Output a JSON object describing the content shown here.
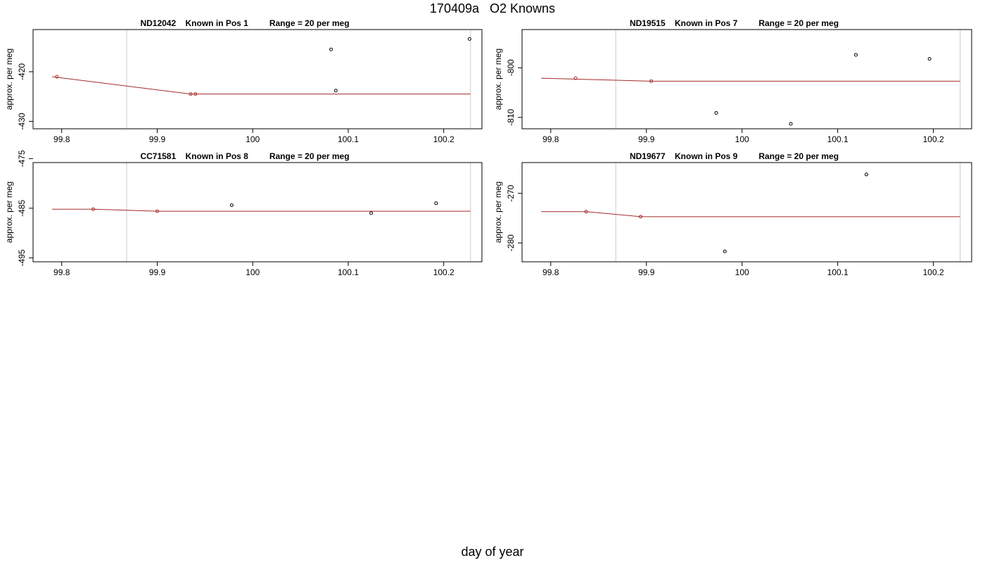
{
  "title": "170409a   O2 Knowns",
  "xlabel": "day of year",
  "colors": {
    "point": "#000000",
    "fit_line": "#a52a2a",
    "fit_point": "#a52a2a",
    "vline": "#d3d3d3",
    "frame": "#000000"
  },
  "chart_data": [
    {
      "type": "scatter",
      "panel_title": "ND12042    Known in Pos 1         Range = 20 per meg",
      "ylabel": "approx. per meg",
      "xlim": [
        99.77,
        100.24
      ],
      "ylim": [
        -431.5,
        -411.5
      ],
      "xticks": [
        99.8,
        99.9,
        100.0,
        100.1,
        100.2
      ],
      "yticks": [
        -420,
        -430
      ],
      "vlines": [
        99.868,
        100.228
      ],
      "line": {
        "x": [
          99.79,
          99.935,
          99.94,
          100.228
        ],
        "y": [
          -421,
          -424.5,
          -424.5,
          -424.5
        ]
      },
      "fit_points": {
        "x": [
          99.795,
          99.935,
          99.94
        ],
        "y": [
          -421,
          -424.5,
          -424.5
        ]
      },
      "points": {
        "x": [
          100.082,
          100.087,
          100.227
        ],
        "y": [
          -415.5,
          -423.8,
          -413.4
        ]
      }
    },
    {
      "type": "scatter",
      "panel_title": "ND19515    Known in Pos 7         Range = 20 per meg",
      "ylabel": "approx. per meg",
      "xlim": [
        99.77,
        100.24
      ],
      "ylim": [
        -812.3,
        -792.3
      ],
      "xticks": [
        99.8,
        99.9,
        100.0,
        100.1,
        100.2
      ],
      "yticks": [
        -800,
        -810
      ],
      "vlines": [
        99.868,
        100.228
      ],
      "line": {
        "x": [
          99.79,
          99.905,
          100.228
        ],
        "y": [
          -802.1,
          -802.7,
          -802.7
        ]
      },
      "fit_points": {
        "x": [
          99.826,
          99.905
        ],
        "y": [
          -802.1,
          -802.7
        ]
      },
      "points": {
        "x": [
          99.973,
          100.051,
          100.119,
          100.196
        ],
        "y": [
          -809.1,
          -811.3,
          -797.4,
          -798.2
        ]
      }
    },
    {
      "type": "scatter",
      "panel_title": "CC71581    Known in Pos 8         Range = 20 per meg",
      "ylabel": "approx. per meg",
      "xlim": [
        99.77,
        100.24
      ],
      "ylim": [
        -495.8,
        -475.8
      ],
      "xticks": [
        99.8,
        99.9,
        100.0,
        100.1,
        100.2
      ],
      "yticks": [
        -475,
        -485,
        -495
      ],
      "vlines": [
        99.868,
        100.228
      ],
      "line": {
        "x": [
          99.79,
          99.833,
          99.9,
          100.228
        ],
        "y": [
          -485.2,
          -485.2,
          -485.6,
          -485.6
        ]
      },
      "fit_points": {
        "x": [
          99.833,
          99.9
        ],
        "y": [
          -485.2,
          -485.6
        ]
      },
      "points": {
        "x": [
          99.978,
          100.124,
          100.192
        ],
        "y": [
          -484.4,
          -486.0,
          -484.0
        ]
      }
    },
    {
      "type": "scatter",
      "panel_title": "ND19677    Known in Pos 9         Range = 20 per meg",
      "ylabel": "approx. per meg",
      "xlim": [
        99.77,
        100.24
      ],
      "ylim": [
        -283.8,
        -263.8
      ],
      "xticks": [
        99.8,
        99.9,
        100.0,
        100.1,
        100.2
      ],
      "yticks": [
        -270,
        -280
      ],
      "vlines": [
        99.868,
        100.228
      ],
      "line": {
        "x": [
          99.79,
          99.837,
          99.894,
          100.228
        ],
        "y": [
          -273.7,
          -273.7,
          -274.7,
          -274.7
        ]
      },
      "fit_points": {
        "x": [
          99.837,
          99.894
        ],
        "y": [
          -273.7,
          -274.7
        ]
      },
      "points": {
        "x": [
          99.982,
          100.13
        ],
        "y": [
          -281.7,
          -266.2
        ]
      }
    }
  ]
}
